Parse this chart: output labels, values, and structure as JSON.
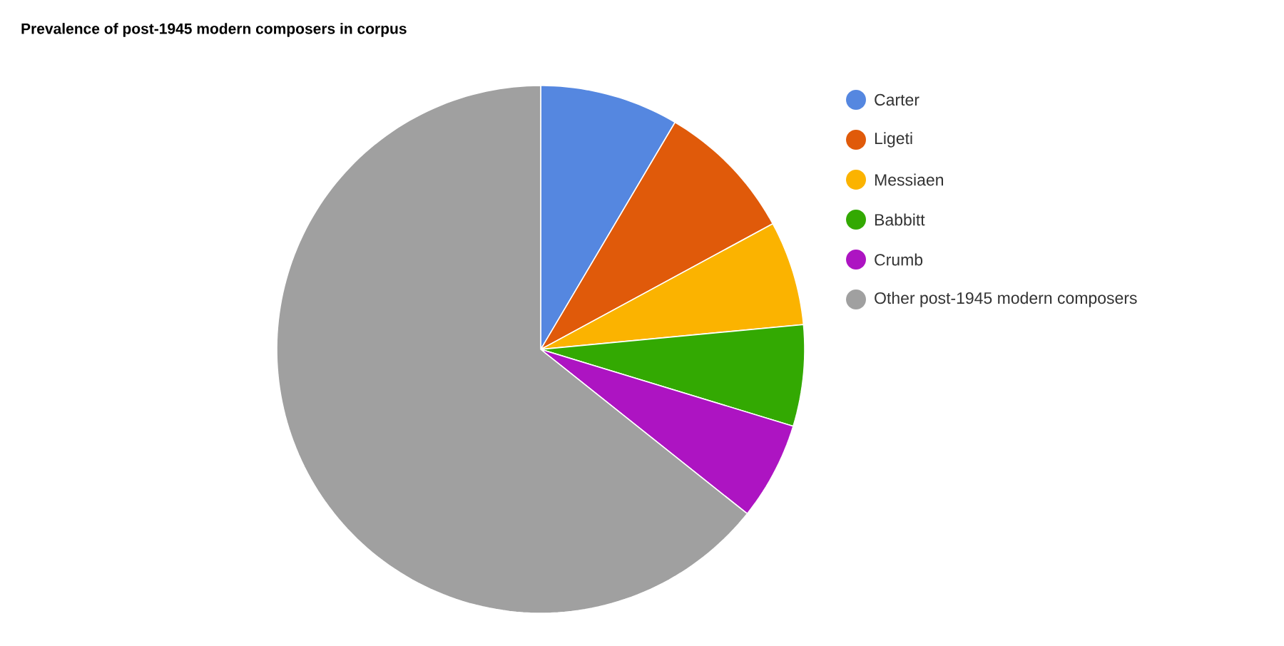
{
  "chart_data": {
    "type": "pie",
    "title": "Prevalence of post-1945 modern composers in corpus",
    "categories": [
      "Carter",
      "Ligeti",
      "Messiaen",
      "Babbitt",
      "Crumb",
      "Other post-1945 modern composers"
    ],
    "values": [
      8.5,
      8.6,
      6.4,
      6.2,
      6.0,
      64.3
    ],
    "colors": [
      "#5587e0",
      "#e05a0a",
      "#fbb300",
      "#33a902",
      "#ad14c2",
      "#a0a0a0"
    ],
    "legend": "right"
  }
}
